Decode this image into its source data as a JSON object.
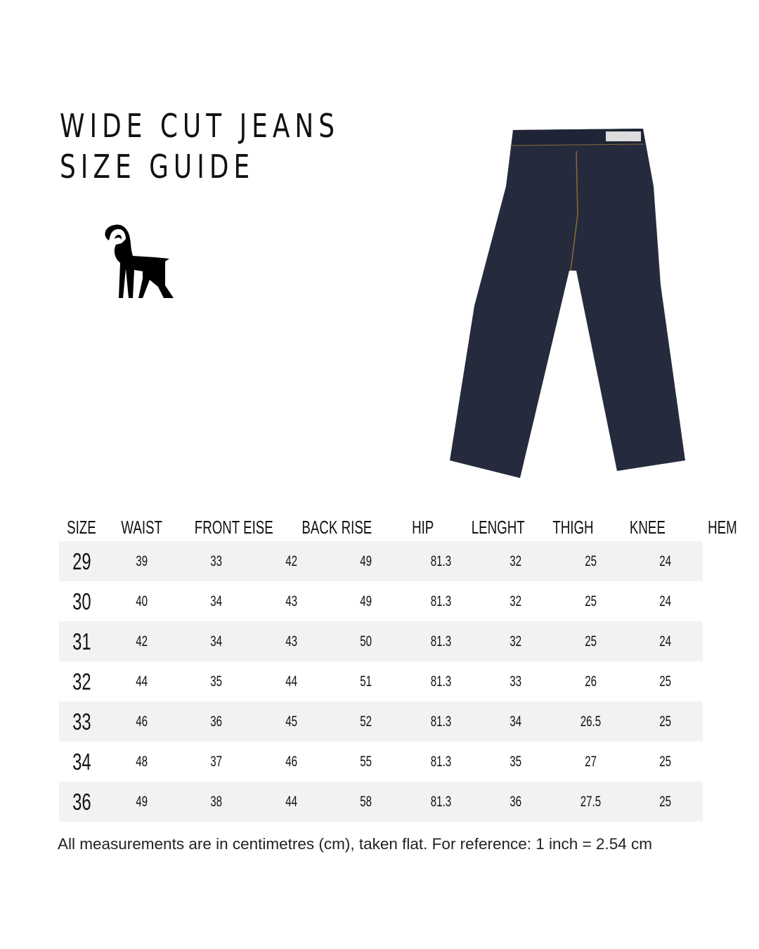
{
  "title_line1": "WIDE CUT JEANS",
  "title_line2": "SIZE GUIDE",
  "logo": "ibex-goat-icon",
  "product_image": "raw-denim-wide-cut-jeans",
  "table": {
    "headers": [
      "SIZE",
      "WAIST",
      "FRONT EISE",
      "BACK RISE",
      "HIP",
      "LENGHT",
      "THIGH",
      "KNEE",
      "HEM"
    ],
    "rows": [
      [
        "29",
        "39",
        "33",
        "42",
        "49",
        "81.3",
        "32",
        "25",
        "24"
      ],
      [
        "30",
        "40",
        "34",
        "43",
        "49",
        "81.3",
        "32",
        "25",
        "24"
      ],
      [
        "31",
        "42",
        "34",
        "43",
        "50",
        "81.3",
        "32",
        "25",
        "24"
      ],
      [
        "32",
        "44",
        "35",
        "44",
        "51",
        "81.3",
        "33",
        "26",
        "25"
      ],
      [
        "33",
        "46",
        "36",
        "45",
        "52",
        "81.3",
        "34",
        "26.5",
        "25"
      ],
      [
        "34",
        "48",
        "37",
        "46",
        "55",
        "81.3",
        "35",
        "27",
        "25"
      ],
      [
        "36",
        "49",
        "38",
        "44",
        "58",
        "81.3",
        "36",
        "27.5",
        "25"
      ]
    ]
  },
  "note": "All measurements are in centimetres (cm), taken flat. For reference: 1 inch = 2.54 cm",
  "colors": {
    "row_shade": "#f2f2f2",
    "denim": "#252b3d",
    "text": "#111111"
  }
}
